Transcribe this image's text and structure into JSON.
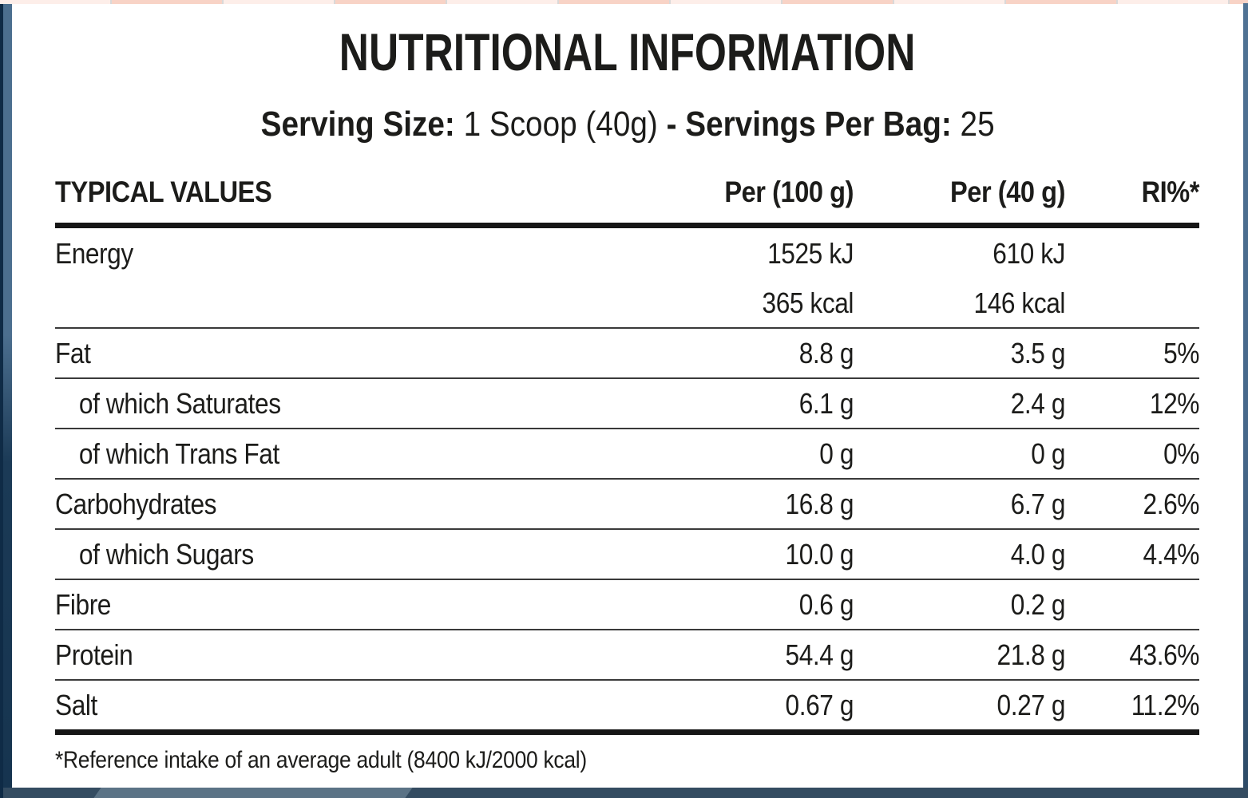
{
  "title": "NUTRITIONAL INFORMATION",
  "serving": {
    "label1": "Serving Size:",
    "value1": "1 Scoop (40g)",
    "separator": "-",
    "label2": "Servings Per Bag:",
    "value2": "25"
  },
  "table": {
    "headers": {
      "label": "TYPICAL VALUES",
      "per100": "Per (100 g)",
      "per40": "Per (40 g)",
      "ri": "RI%*"
    },
    "rows": [
      {
        "label": "Energy",
        "per100": "1525 kJ",
        "per40": "610 kJ",
        "ri": ""
      },
      {
        "label": "",
        "per100": "365 kcal",
        "per40": "146 kcal",
        "ri": ""
      },
      {
        "label": "Fat",
        "per100": "8.8 g",
        "per40": "3.5 g",
        "ri": "5%"
      },
      {
        "label": "of which Saturates",
        "per100": "6.1 g",
        "per40": "2.4 g",
        "ri": "12%"
      },
      {
        "label": "of which Trans Fat",
        "per100": "0 g",
        "per40": "0 g",
        "ri": "0%"
      },
      {
        "label": "Carbohydrates",
        "per100": "16.8 g",
        "per40": "6.7 g",
        "ri": "2.6%"
      },
      {
        "label": "of which Sugars",
        "per100": "10.0 g",
        "per40": "4.0 g",
        "ri": "4.4%"
      },
      {
        "label": "Fibre",
        "per100": "0.6 g",
        "per40": "0.2 g",
        "ri": ""
      },
      {
        "label": "Protein",
        "per100": "54.4 g",
        "per40": "21.8 g",
        "ri": "43.6%"
      },
      {
        "label": "Salt",
        "per100": "0.67 g",
        "per40": "0.27 g",
        "ri": "11.2%"
      }
    ]
  },
  "footnote": "*Reference intake of an average adult (8400 kJ/2000 kcal)",
  "colors": {
    "text": "#1c1c1a",
    "thin_rule": "#3a3a3a",
    "thick_rule": "#161616",
    "left_border_top": "#4c6f8f",
    "left_border_bottom": "#16344f",
    "left_border_outer": "#0f2b46",
    "right_border": "#47688a",
    "bottom_bar": "#344c61",
    "bottom_bar_light": "#5b7386",
    "top_strip_pale": "#fdeee9",
    "top_strip_salmon": "#f8d3c6"
  }
}
